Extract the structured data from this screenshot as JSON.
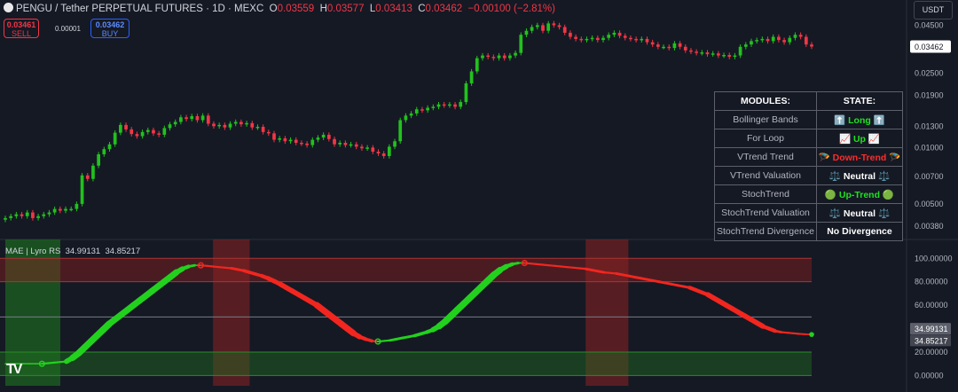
{
  "header": {
    "symbol": "PENGU / Tether PERPETUAL FUTURES · 1D · MEXC",
    "o_label": "O",
    "o": "0.03559",
    "h_label": "H",
    "h": "0.03577",
    "l_label": "L",
    "l": "0.03413",
    "c_label": "C",
    "c": "0.03462",
    "change": "−0.00100 (−2.81%)"
  },
  "trade": {
    "sell_price": "0.03461",
    "sell_label": "SELL",
    "spread": "0.00001",
    "buy_price": "0.03462",
    "buy_label": "BUY"
  },
  "currency": "USDT",
  "indicator": {
    "name": "MAE | Lyro RS",
    "v1": "34.99131",
    "v2": "34.85217"
  },
  "modules": {
    "head_module": "MODULES:",
    "head_state": "STATE:",
    "rows": [
      {
        "module": "Bollinger Bands",
        "state": "⬆️ Long ⬆️",
        "tone": "g"
      },
      {
        "module": "For Loop",
        "state": "📈 Up 📈",
        "tone": "g"
      },
      {
        "module": "VTrend Trend",
        "state": "🪂 Down-Trend 🪂",
        "tone": "r"
      },
      {
        "module": "VTrend Valuation",
        "state": "⚖️ Neutral ⚖️",
        "tone": ""
      },
      {
        "module": "StochTrend",
        "state": "🟢 Up-Trend 🟢",
        "tone": "g"
      },
      {
        "module": "StochTrend Valuation",
        "state": "⚖️ Neutral ⚖️",
        "tone": ""
      },
      {
        "module": "StochTrend Divergence",
        "state": "No Divergence",
        "tone": ""
      }
    ]
  },
  "chart_data": [
    {
      "type": "candlestick",
      "scale": "log",
      "ylim": [
        0.0033,
        0.055
      ],
      "y_ticks": [
        "0.04500",
        "0.02500",
        "0.01900",
        "0.01300",
        "0.01000",
        "0.00700",
        "0.00500",
        "0.00380"
      ],
      "last_price_label": "0.03462",
      "colors": {
        "up": "#22c11e",
        "down": "#f23645"
      },
      "closes": [
        0.0042,
        0.0043,
        0.0044,
        0.0043,
        0.0045,
        0.0042,
        0.0043,
        0.0044,
        0.0045,
        0.0047,
        0.0046,
        0.0047,
        0.0047,
        0.005,
        0.0071,
        0.0068,
        0.008,
        0.0092,
        0.0098,
        0.0104,
        0.012,
        0.0132,
        0.0125,
        0.0118,
        0.0115,
        0.0121,
        0.0124,
        0.0119,
        0.0117,
        0.0127,
        0.0133,
        0.0137,
        0.0145,
        0.0142,
        0.0147,
        0.014,
        0.0148,
        0.0134,
        0.013,
        0.0132,
        0.0128,
        0.0134,
        0.0137,
        0.0133,
        0.0135,
        0.0128,
        0.0129,
        0.0121,
        0.0119,
        0.011,
        0.0112,
        0.0108,
        0.011,
        0.0106,
        0.0105,
        0.0103,
        0.011,
        0.0113,
        0.0117,
        0.0111,
        0.0104,
        0.0106,
        0.0103,
        0.0104,
        0.0101,
        0.0099,
        0.01,
        0.0095,
        0.0093,
        0.009,
        0.0101,
        0.0108,
        0.014,
        0.0148,
        0.0152,
        0.016,
        0.0158,
        0.0163,
        0.0165,
        0.017,
        0.0168,
        0.017,
        0.0165,
        0.0175,
        0.022,
        0.0255,
        0.03,
        0.031,
        0.0305,
        0.03,
        0.031,
        0.03,
        0.031,
        0.032,
        0.04,
        0.042,
        0.044,
        0.045,
        0.042,
        0.046,
        0.045,
        0.044,
        0.041,
        0.039,
        0.038,
        0.0375,
        0.038,
        0.0385,
        0.0375,
        0.0385,
        0.04,
        0.041,
        0.0395,
        0.0385,
        0.038,
        0.0375,
        0.038,
        0.0365,
        0.0355,
        0.0345,
        0.0345,
        0.034,
        0.036,
        0.0345,
        0.033,
        0.0325,
        0.032,
        0.0322,
        0.0315,
        0.0318,
        0.031,
        0.0312,
        0.0305,
        0.031,
        0.0345,
        0.0355,
        0.037,
        0.0375,
        0.038,
        0.037,
        0.039,
        0.0375,
        0.0365,
        0.0385,
        0.04,
        0.039,
        0.0355,
        0.0346
      ]
    },
    {
      "type": "line",
      "title": "MAE | Lyro RS",
      "ylim": [
        -5,
        107
      ],
      "y_ticks": [
        "100.00000",
        "80.00000",
        "60.00000",
        "40.00000",
        "20.00000",
        "0.00000"
      ],
      "last_values": [
        "34.99131",
        "34.85217"
      ],
      "bands": [
        [
          80,
          100
        ],
        [
          0,
          20
        ]
      ],
      "midline": 50,
      "highlight_zones": [
        {
          "from": 0,
          "to": 9,
          "color": "#1f7d1f"
        },
        {
          "from": 34,
          "to": 40,
          "color": "#8c2222"
        },
        {
          "from": 95,
          "to": 102,
          "color": "#8c2222"
        }
      ],
      "series": [
        {
          "values": [
            10,
            10,
            10,
            10,
            10,
            10,
            10,
            10.5,
            11,
            11.5,
            12,
            15,
            19,
            24,
            29,
            34,
            39,
            44,
            48,
            52,
            56,
            60,
            64,
            68,
            72,
            76,
            80,
            84,
            88,
            91,
            93,
            94,
            94,
            93.5,
            93,
            92.5,
            92,
            91.5,
            90.5,
            89.5,
            88,
            86.5,
            85,
            83,
            80.5,
            78,
            75,
            72,
            69,
            66,
            63,
            60,
            56,
            52,
            48,
            44,
            40,
            36,
            33,
            31,
            29.5,
            29,
            29.5,
            30,
            31,
            32,
            33,
            34,
            35.5,
            37,
            39,
            42,
            46,
            51,
            56,
            61,
            66,
            71,
            76,
            81,
            86,
            90,
            93,
            95,
            96,
            96,
            95.5,
            95,
            94.5,
            94,
            93.5,
            93,
            92.5,
            92,
            91.5,
            91,
            90,
            89,
            88,
            87.5,
            87,
            86,
            85,
            84,
            83,
            82,
            81,
            80,
            79,
            78,
            77,
            76,
            75,
            73,
            71,
            69,
            66,
            63,
            60,
            57,
            54,
            51,
            48,
            45,
            42,
            40,
            38,
            37,
            36.5,
            36,
            35.5,
            35.2,
            35
          ]
        }
      ]
    }
  ]
}
